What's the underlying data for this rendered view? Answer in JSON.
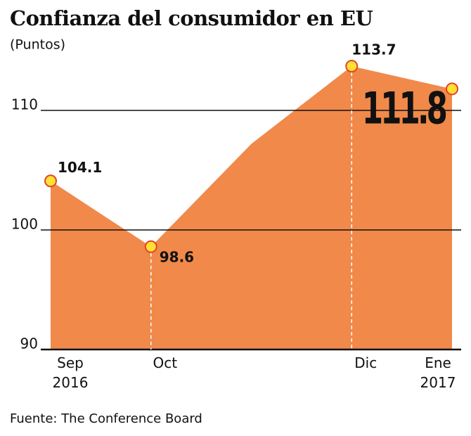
{
  "chart_data": {
    "type": "area",
    "title": "Confianza del consumidor en EU",
    "subtitle": "(Puntos)",
    "source": "Fuente: The Conference Board",
    "categories": [
      "Sep 2016",
      "Oct",
      null,
      "Dic",
      "Ene 2017"
    ],
    "values": [
      104.1,
      98.6,
      107.2,
      113.7,
      111.8
    ],
    "value_labels": [
      "104.1",
      "98.6",
      null,
      "113.7",
      "111.8"
    ],
    "color": "#f0894a",
    "ylim": [
      90,
      115
    ],
    "yticks": [
      90,
      100,
      110
    ],
    "grid": true
  }
}
